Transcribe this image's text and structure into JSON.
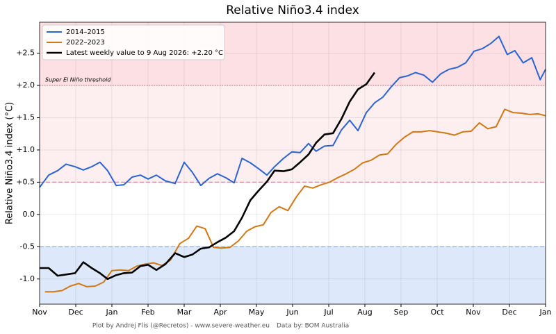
{
  "chart_data": {
    "type": "line",
    "title": "Relative Niño3.4 index",
    "y_label": "Relative Niño3.4 index (°C)",
    "footer_left": "Plot by Andrej Flis (@Recretos) - www.severe-weather.eu",
    "footer_right": "Data by: BOM Australia",
    "xlim": [
      0,
      14
    ],
    "xticks": [
      {
        "value": 0,
        "label": "Nov"
      },
      {
        "value": 1,
        "label": "Dec"
      },
      {
        "value": 2,
        "label": "Jan"
      },
      {
        "value": 3,
        "label": "Feb"
      },
      {
        "value": 4,
        "label": "Mar"
      },
      {
        "value": 5,
        "label": "Apr"
      },
      {
        "value": 6,
        "label": "May"
      },
      {
        "value": 7,
        "label": "Jun"
      },
      {
        "value": 8,
        "label": "Jul"
      },
      {
        "value": 9,
        "label": "Aug"
      },
      {
        "value": 10,
        "label": "Sep"
      },
      {
        "value": 11,
        "label": "Oct"
      },
      {
        "value": 12,
        "label": "Nov"
      },
      {
        "value": 13,
        "label": "Dec"
      },
      {
        "value": 14,
        "label": "Jan"
      }
    ],
    "ylim": [
      -1.39,
      2.98
    ],
    "yticks": [
      {
        "value": 2.5,
        "label": "+2.5"
      },
      {
        "value": 2,
        "label": "+2.0"
      },
      {
        "value": 1.5,
        "label": "+1.5"
      },
      {
        "value": 1,
        "label": "+1.0"
      },
      {
        "value": 0.5,
        "label": "+0.5"
      },
      {
        "value": 0,
        "label": "0.0"
      },
      -0.5,
      {
        "value": -1,
        "label": "-1.0"
      }
    ],
    "grid": true,
    "legend": "upper left",
    "reference_lines": [
      {
        "value": 0.5,
        "color": "#dc8ea3"
      },
      {
        "value": -0.5,
        "color": "#7ea7d8"
      }
    ],
    "threshold": {
      "value": 2,
      "label": "Super El Niño threshold",
      "color": "#a0304e"
    },
    "series": [
      {
        "name": "2014–2015",
        "color": "#2b63d0",
        "x": [
          0,
          0.25,
          0.5,
          0.73,
          0.98,
          1.21,
          1.44,
          1.67,
          1.88,
          2.12,
          2.33,
          2.56,
          2.79,
          3.0,
          3.23,
          3.48,
          3.75,
          4.0,
          4.23,
          4.46,
          4.69,
          4.92,
          5.15,
          5.38,
          5.6,
          5.83,
          6.06,
          6.29,
          6.5,
          6.75,
          6.98,
          7.21,
          7.44,
          7.65,
          7.88,
          8.12,
          8.35,
          8.58,
          8.81,
          9.04,
          9.27,
          9.5,
          9.73,
          9.96,
          10.19,
          10.4,
          10.63,
          10.87,
          11.1,
          11.33,
          11.56,
          11.79,
          12.02,
          12.25,
          12.48,
          12.71,
          12.94,
          13.15,
          13.38,
          13.62,
          13.85,
          14
        ],
        "values": [
          0.42,
          0.61,
          0.68,
          0.78,
          0.74,
          0.69,
          0.74,
          0.81,
          0.68,
          0.45,
          0.46,
          0.58,
          0.61,
          0.55,
          0.61,
          0.52,
          0.48,
          0.81,
          0.65,
          0.45,
          0.56,
          0.63,
          0.57,
          0.49,
          0.87,
          0.8,
          0.71,
          0.61,
          0.74,
          0.87,
          0.97,
          0.96,
          1.1,
          0.98,
          1.06,
          1.07,
          1.31,
          1.46,
          1.3,
          1.58,
          1.73,
          1.82,
          1.98,
          2.12,
          2.15,
          2.2,
          2.16,
          2.05,
          2.18,
          2.25,
          2.28,
          2.35,
          2.53,
          2.57,
          2.65,
          2.76,
          2.48,
          2.54,
          2.35,
          2.43,
          2.09,
          2.25
        ]
      },
      {
        "name": "2022–2023",
        "color": "#d07814",
        "x": [
          0.15,
          0.38,
          0.62,
          0.85,
          1.08,
          1.31,
          1.54,
          1.77,
          2.0,
          2.23,
          2.46,
          2.69,
          2.92,
          3.15,
          3.38,
          3.62,
          3.88,
          4.12,
          4.35,
          4.58,
          4.81,
          5.04,
          5.27,
          5.5,
          5.73,
          5.96,
          6.19,
          6.4,
          6.63,
          6.87,
          7.1,
          7.33,
          7.56,
          7.79,
          8.02,
          8.25,
          8.48,
          8.71,
          8.94,
          9.17,
          9.4,
          9.63,
          9.87,
          10.1,
          10.33,
          10.56,
          10.79,
          11.02,
          11.25,
          11.48,
          11.71,
          11.94,
          12.17,
          12.4,
          12.63,
          12.87,
          13.1,
          13.33,
          13.56,
          13.79,
          14
        ],
        "values": [
          -1.2,
          -1.2,
          -1.18,
          -1.11,
          -1.07,
          -1.12,
          -1.11,
          -1.05,
          -0.87,
          -0.86,
          -0.87,
          -0.8,
          -0.77,
          -0.75,
          -0.79,
          -0.71,
          -0.45,
          -0.37,
          -0.18,
          -0.22,
          -0.51,
          -0.52,
          -0.51,
          -0.41,
          -0.26,
          -0.19,
          -0.16,
          0.03,
          0.12,
          0.06,
          0.27,
          0.44,
          0.41,
          0.46,
          0.5,
          0.57,
          0.63,
          0.7,
          0.8,
          0.84,
          0.92,
          0.94,
          1.09,
          1.2,
          1.28,
          1.28,
          1.3,
          1.28,
          1.26,
          1.23,
          1.28,
          1.29,
          1.42,
          1.33,
          1.36,
          1.63,
          1.58,
          1.57,
          1.55,
          1.56,
          1.53
        ]
      },
      {
        "name": "Latest weekly value to 9 Aug 2026: +2.20 °C",
        "color": "#000000",
        "x": [
          0,
          0.25,
          0.5,
          0.73,
          0.98,
          1.21,
          1.44,
          1.67,
          1.88,
          2.12,
          2.33,
          2.56,
          2.79,
          3.0,
          3.23,
          3.48,
          3.75,
          4.0,
          4.23,
          4.46,
          4.69,
          4.92,
          5.15,
          5.38,
          5.6,
          5.83,
          6.06,
          6.29,
          6.5,
          6.75,
          6.98,
          7.21,
          7.44,
          7.65,
          7.88,
          8.12,
          8.35,
          8.58,
          8.81,
          9.04,
          9.27
        ],
        "values": [
          -0.83,
          -0.83,
          -0.95,
          -0.93,
          -0.91,
          -0.74,
          -0.83,
          -0.91,
          -1.0,
          -0.94,
          -0.91,
          -0.9,
          -0.8,
          -0.78,
          -0.86,
          -0.77,
          -0.6,
          -0.66,
          -0.62,
          -0.53,
          -0.51,
          -0.43,
          -0.36,
          -0.26,
          -0.05,
          0.22,
          0.37,
          0.51,
          0.68,
          0.67,
          0.7,
          0.81,
          0.93,
          1.11,
          1.24,
          1.26,
          1.48,
          1.75,
          1.94,
          2.02,
          2.2
        ]
      }
    ]
  }
}
